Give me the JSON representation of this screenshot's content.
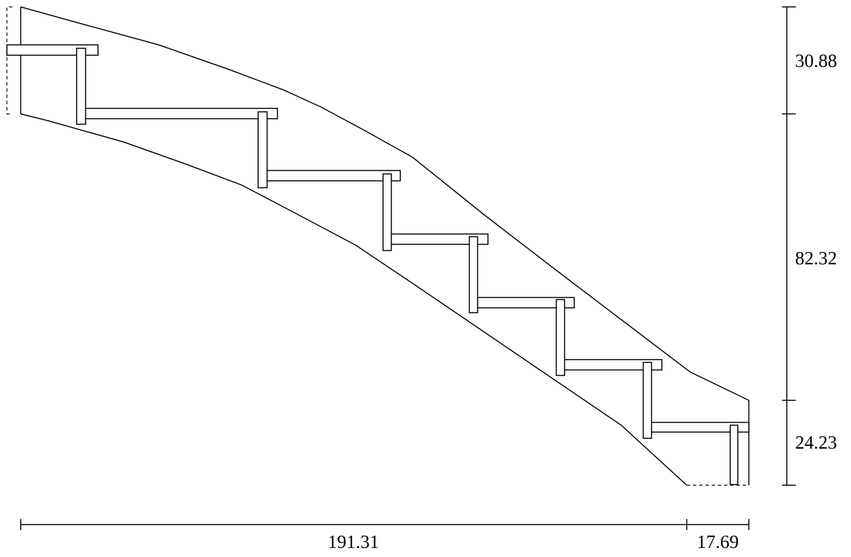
{
  "dimensions": {
    "vertical": {
      "top": "30.88",
      "middle": "82.32",
      "bottom": "24.23"
    },
    "horizontal": {
      "main": "191.31",
      "end": "17.69"
    }
  },
  "colors": {
    "line": "#000000",
    "background": "#ffffff"
  }
}
